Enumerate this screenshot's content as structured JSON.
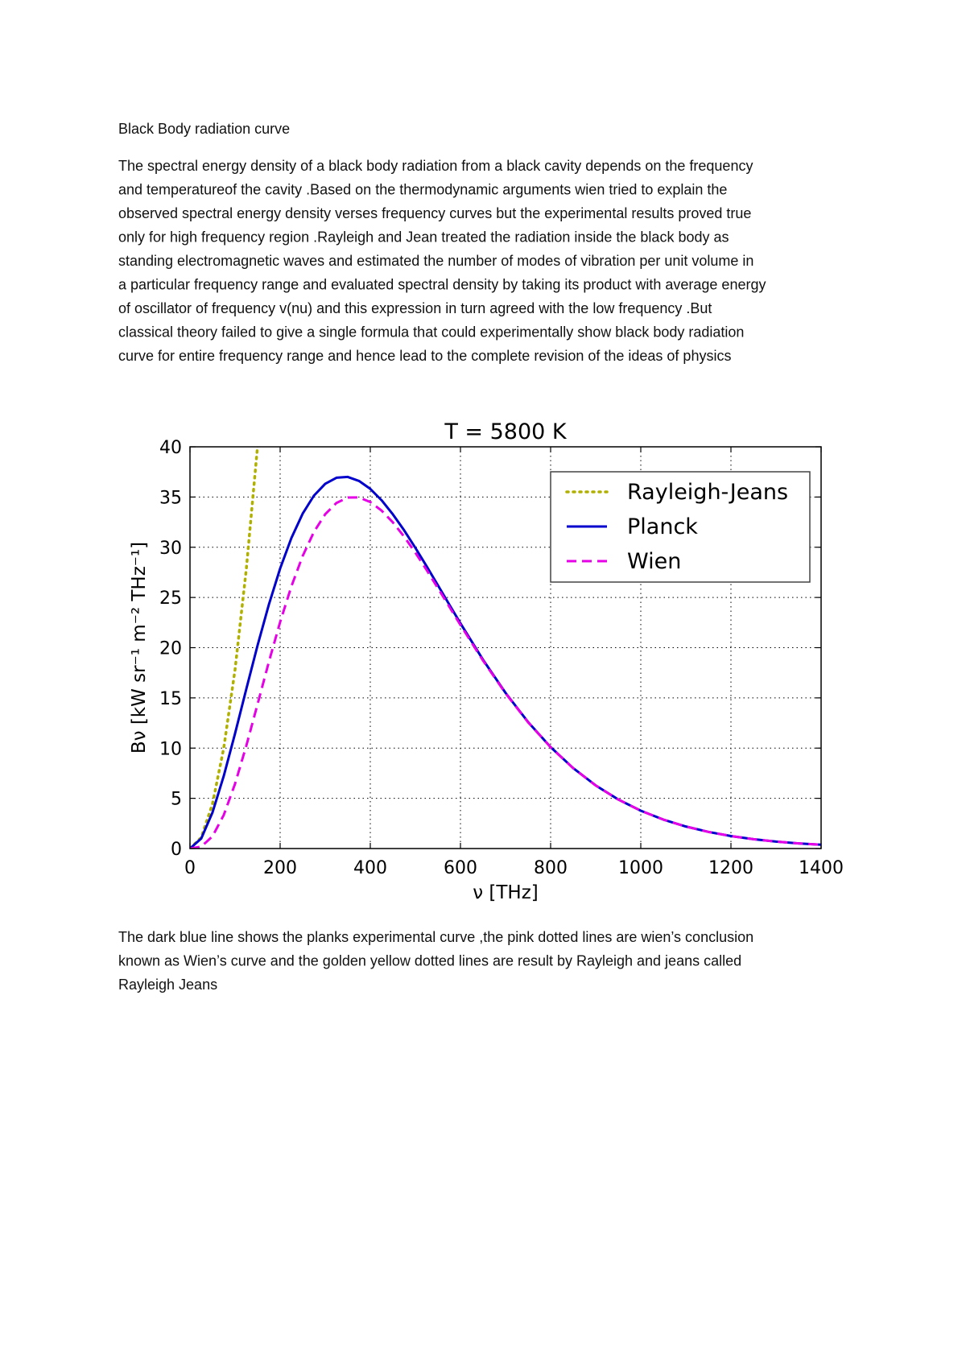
{
  "heading": "Black Body radiation curve",
  "paragraph": [
    "The spectral energy density of a black body radiation from a black cavity depends on the frequency",
    "and temperatureof the cavity .Based on the thermodynamic arguments wien tried to explain the",
    "observed spectral energy density verses frequency curves but the experimental results proved true",
    "only for high frequency region .Rayleigh and Jean treated the radiation inside the black body as",
    "standing electromagnetic waves and estimated the number of modes of vibration per unit volume in",
    "a particular frequency range and evaluated spectral density by taking its product with average energy",
    "of oscillator of frequency v(nu) and this expression in turn agreed with the low frequency .But",
    "classical theory failed to give a single formula that could experimentally show black body radiation",
    "curve for entire frequency range and hence lead to the complete revision of the ideas of physics"
  ],
  "chart_data": {
    "type": "line",
    "title": "T = 5800 K",
    "xlabel": "ν [THz]",
    "ylabel": "Bν [kW sr⁻¹ m⁻² THz⁻¹]",
    "x": [
      0,
      25,
      50,
      75,
      100,
      125,
      150,
      175,
      200,
      225,
      250,
      275,
      300,
      325,
      350,
      375,
      400,
      425,
      450,
      475,
      500,
      525,
      550,
      575,
      600,
      650,
      700,
      750,
      800,
      850,
      900,
      950,
      1000,
      1050,
      1100,
      1150,
      1200,
      1250,
      1300,
      1350,
      1400
    ],
    "series": [
      {
        "name": "Rayleigh-Jeans",
        "color": "#b0b000",
        "linestyle": "dotted",
        "values": [
          0,
          1.114,
          4.456,
          10.027,
          17.825,
          27.852,
          40.106,
          null,
          null,
          null,
          null,
          null,
          null,
          null,
          null,
          null,
          null,
          null,
          null,
          null,
          null,
          null,
          null,
          null,
          null,
          null,
          null,
          null,
          null,
          null,
          null,
          null,
          null,
          null,
          null,
          null,
          null,
          null,
          null,
          null,
          null
        ]
      },
      {
        "name": "Planck",
        "color": "#0000cc",
        "linestyle": "solid",
        "values": [
          0,
          1.003,
          3.598,
          7.236,
          11.458,
          15.891,
          20.243,
          24.293,
          27.885,
          30.92,
          33.35,
          35.14,
          36.32,
          36.92,
          37.0,
          36.6,
          35.81,
          34.68,
          33.28,
          31.69,
          29.94,
          28.1,
          26.21,
          24.31,
          22.42,
          18.8,
          15.5,
          12.6,
          10.1,
          8.009,
          6.284,
          4.886,
          3.768,
          2.884,
          2.193,
          1.657,
          1.245,
          0.93,
          0.692,
          0.512,
          0.378
        ]
      },
      {
        "name": "Wien",
        "color": "#e600e6",
        "linestyle": "dashed",
        "values": [
          0,
          0.1874,
          1.2188,
          3.345,
          6.448,
          10.24,
          14.389,
          18.581,
          22.554,
          26.113,
          29.13,
          31.53,
          33.29,
          34.41,
          34.95,
          34.96,
          34.5,
          33.65,
          32.48,
          31.06,
          29.46,
          27.73,
          25.93,
          24.1,
          22.26,
          18.72,
          15.46,
          12.57,
          10.09,
          8.002,
          6.281,
          4.884,
          3.767,
          2.884,
          2.192,
          1.656,
          1.244,
          0.93,
          0.692,
          0.512,
          0.378
        ]
      }
    ],
    "xlim": [
      0,
      1400
    ],
    "xticks": [
      0,
      200,
      400,
      600,
      800,
      1000,
      1200,
      1400
    ],
    "ylim": [
      0,
      40
    ],
    "yticks": [
      0,
      5,
      10,
      15,
      20,
      25,
      30,
      35,
      40
    ],
    "grid": true,
    "legend": "upper right"
  },
  "caption": [
    "The  dark blue line shows the planks experimental curve ,the pink dotted lines are wien’s conclusion",
    "known as Wien’s curve and the golden yellow dotted lines are result by Rayleigh and jeans called",
    "Rayleigh Jeans"
  ]
}
